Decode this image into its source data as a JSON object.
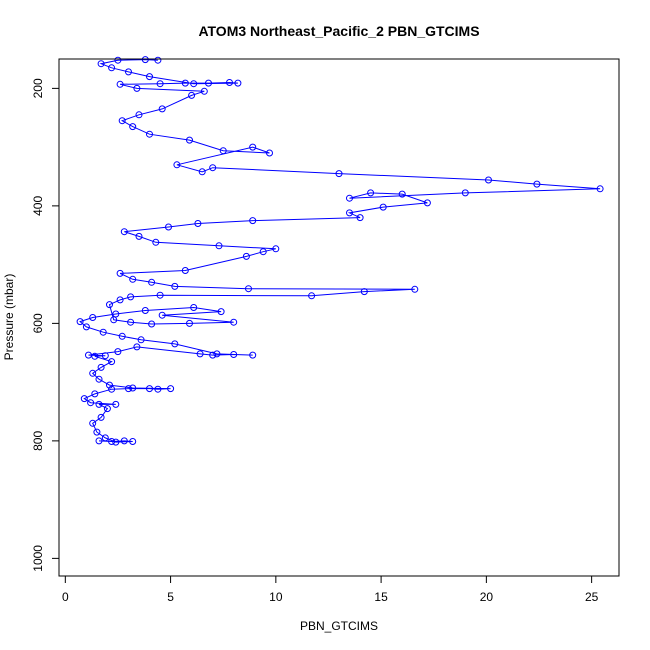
{
  "chart_data": {
    "type": "scatter",
    "title": "ATOM3 Northeast_Pacific_2 PBN_GTCIMS",
    "xlabel": "PBN_GTCIMS",
    "ylabel": "Pressure (mbar)",
    "xlim": [
      -0.3,
      26.3
    ],
    "ylim": [
      1030,
      150
    ],
    "y_reversed": true,
    "x_ticks": [
      0,
      5,
      10,
      15,
      20,
      25
    ],
    "y_ticks": [
      200,
      400,
      600,
      800,
      1000
    ],
    "marker": "open-circle",
    "connect_points": true,
    "color": "#0000ff",
    "series": [
      {
        "points": [
          [
            1.6,
            800
          ],
          [
            2.2,
            801
          ],
          [
            2.8,
            800
          ],
          [
            3.2,
            801
          ],
          [
            2.4,
            802
          ],
          [
            1.9,
            795
          ],
          [
            1.5,
            785
          ],
          [
            1.3,
            770
          ],
          [
            1.7,
            760
          ],
          [
            2.0,
            745
          ],
          [
            1.6,
            738
          ],
          [
            2.4,
            738
          ],
          [
            1.2,
            735
          ],
          [
            0.9,
            728
          ],
          [
            1.4,
            720
          ],
          [
            2.2,
            712
          ],
          [
            3.0,
            711
          ],
          [
            4.0,
            711
          ],
          [
            4.4,
            712
          ],
          [
            5.0,
            711
          ],
          [
            3.2,
            710
          ],
          [
            2.1,
            705
          ],
          [
            1.6,
            695
          ],
          [
            1.3,
            685
          ],
          [
            1.7,
            675
          ],
          [
            2.2,
            665
          ],
          [
            1.4,
            656
          ],
          [
            1.9,
            655
          ],
          [
            1.1,
            654
          ],
          [
            2.5,
            648
          ],
          [
            3.4,
            640
          ],
          [
            6.4,
            652
          ],
          [
            7.0,
            654
          ],
          [
            8.0,
            653
          ],
          [
            8.9,
            654
          ],
          [
            7.2,
            652
          ],
          [
            5.2,
            635
          ],
          [
            3.6,
            628
          ],
          [
            2.7,
            622
          ],
          [
            1.8,
            615
          ],
          [
            1.0,
            606
          ],
          [
            0.7,
            597
          ],
          [
            1.3,
            590
          ],
          [
            2.4,
            584
          ],
          [
            3.8,
            578
          ],
          [
            6.1,
            573
          ],
          [
            7.4,
            580
          ],
          [
            4.6,
            586
          ],
          [
            8.0,
            598
          ],
          [
            5.9,
            600
          ],
          [
            4.1,
            601
          ],
          [
            3.1,
            598
          ],
          [
            2.3,
            594
          ],
          [
            2.1,
            568
          ],
          [
            2.6,
            560
          ],
          [
            3.1,
            555
          ],
          [
            4.5,
            552
          ],
          [
            11.7,
            553
          ],
          [
            14.2,
            546
          ],
          [
            16.6,
            542
          ],
          [
            8.7,
            541
          ],
          [
            5.2,
            537
          ],
          [
            4.1,
            530
          ],
          [
            3.2,
            525
          ],
          [
            2.6,
            515
          ],
          [
            5.7,
            510
          ],
          [
            8.6,
            486
          ],
          [
            9.4,
            478
          ],
          [
            10.0,
            473
          ],
          [
            7.3,
            468
          ],
          [
            4.3,
            462
          ],
          [
            3.5,
            452
          ],
          [
            2.8,
            444
          ],
          [
            4.9,
            436
          ],
          [
            6.3,
            430
          ],
          [
            8.9,
            425
          ],
          [
            14.0,
            420
          ],
          [
            13.5,
            412
          ],
          [
            15.1,
            402
          ],
          [
            17.2,
            395
          ],
          [
            16.0,
            380
          ],
          [
            14.5,
            378
          ],
          [
            13.5,
            387
          ],
          [
            19.0,
            378
          ],
          [
            25.4,
            371
          ],
          [
            22.4,
            363
          ],
          [
            20.1,
            356
          ],
          [
            13.0,
            345
          ],
          [
            7.0,
            335
          ],
          [
            6.5,
            342
          ],
          [
            5.3,
            330
          ],
          [
            8.9,
            300
          ],
          [
            9.7,
            310
          ],
          [
            7.5,
            306
          ],
          [
            5.9,
            288
          ],
          [
            4.0,
            278
          ],
          [
            3.2,
            265
          ],
          [
            2.7,
            255
          ],
          [
            3.5,
            245
          ],
          [
            4.6,
            235
          ],
          [
            6.0,
            212
          ],
          [
            6.6,
            205
          ],
          [
            3.4,
            200
          ],
          [
            2.6,
            193
          ],
          [
            4.5,
            192
          ],
          [
            5.7,
            191
          ],
          [
            6.8,
            191
          ],
          [
            7.8,
            190
          ],
          [
            8.2,
            191
          ],
          [
            6.1,
            192
          ],
          [
            4.0,
            180
          ],
          [
            3.0,
            172
          ],
          [
            2.2,
            165
          ],
          [
            1.7,
            158
          ],
          [
            2.5,
            152
          ],
          [
            3.8,
            151
          ],
          [
            4.4,
            152
          ]
        ]
      }
    ]
  }
}
